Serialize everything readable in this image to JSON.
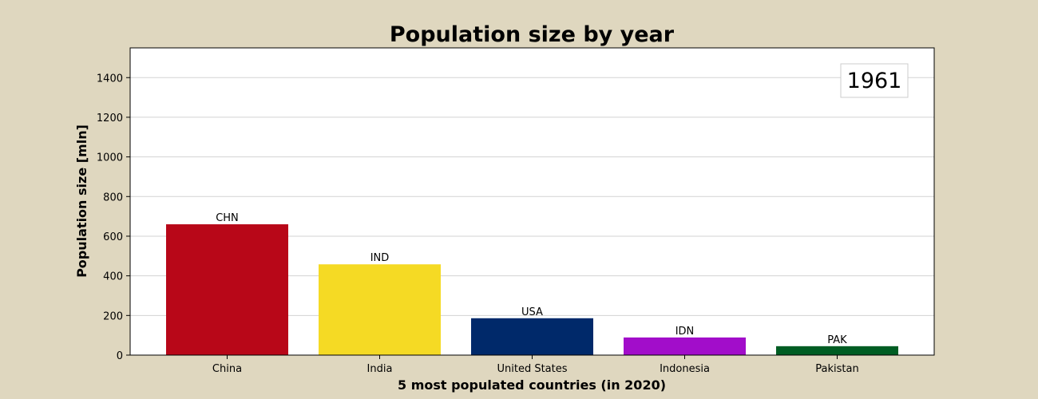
{
  "chart_data": {
    "type": "bar",
    "title": "Population size by year",
    "xlabel": "5 most populated countries (in 2020)",
    "ylabel": "Population size [mln]",
    "year_label": "1961",
    "categories": [
      "China",
      "India",
      "United States",
      "Indonesia",
      "Pakistan"
    ],
    "bar_labels": [
      "CHN",
      "IND",
      "USA",
      "IDN",
      "PAK"
    ],
    "values": [
      660,
      458,
      186,
      89,
      45
    ],
    "colors": [
      "#B80718",
      "#F5DA24",
      "#00296A",
      "#A20DCA",
      "#005D23"
    ],
    "yticks": [
      0,
      200,
      400,
      600,
      800,
      1000,
      1200,
      1400
    ],
    "ylim": [
      0,
      1550
    ],
    "grid": true,
    "legend": "none"
  }
}
